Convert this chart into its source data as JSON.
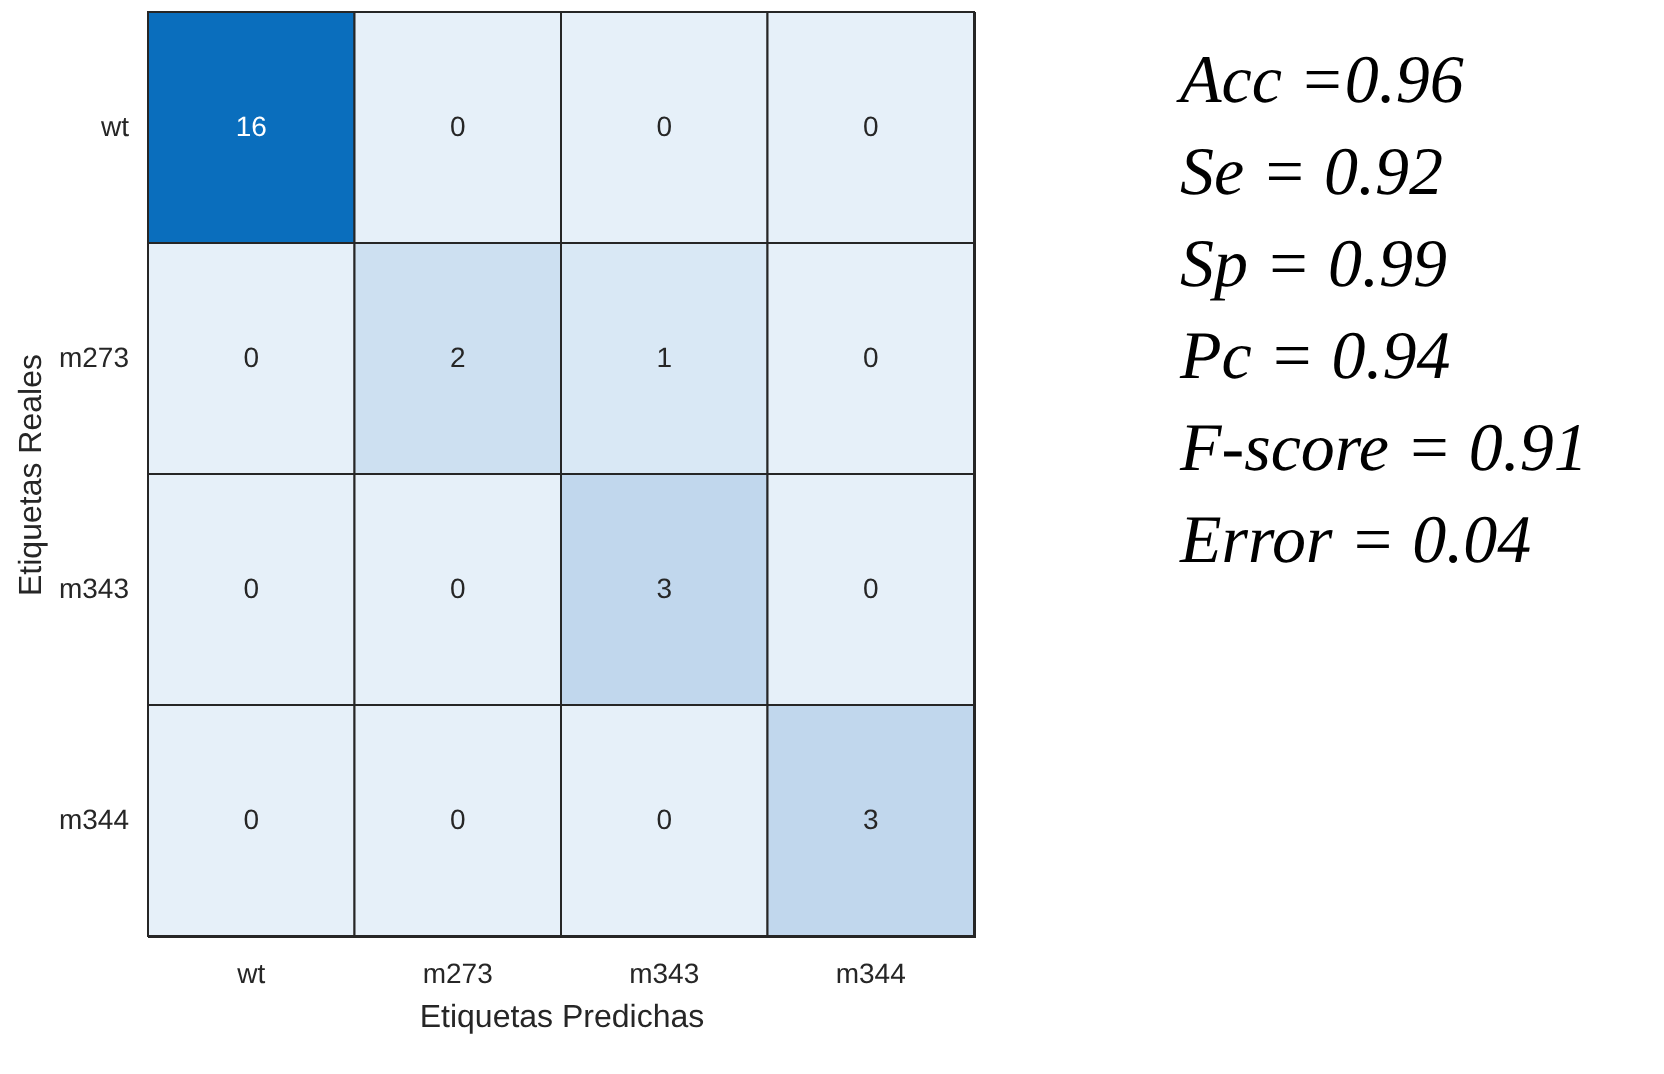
{
  "chart_data": {
    "type": "heatmap",
    "xlabel": "Etiquetas Predichas",
    "ylabel": "Etiquetas Reales",
    "categories": [
      "wt",
      "m273",
      "m343",
      "m344"
    ],
    "y_categories": [
      "wt",
      "m273",
      "m343",
      "m344"
    ],
    "cells": [
      [
        16,
        0,
        0,
        0
      ],
      [
        0,
        2,
        1,
        0
      ],
      [
        0,
        0,
        3,
        0
      ],
      [
        0,
        0,
        0,
        3
      ]
    ],
    "data_labels": true,
    "annotations": [
      "Acc =0.96",
      "Se = 0.92",
      "Sp = 0.99",
      "Pc = 0.94",
      "F-score = 0.91",
      "Error = 0.04"
    ]
  }
}
